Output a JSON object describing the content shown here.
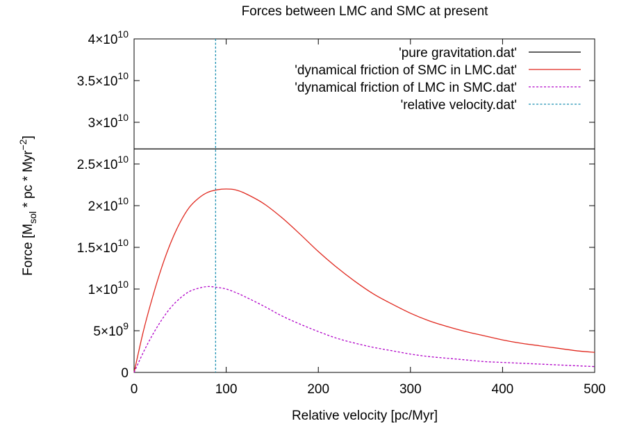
{
  "chart_data": {
    "type": "line",
    "title": "Forces between LMC and SMC at present",
    "xlabel": "Relative velocity [pc/Myr]",
    "ylabel": {
      "force": "Force [M",
      "sub_sol": "sol",
      "units": " * pc * Myr",
      "sup_exp": "−2",
      "close": "]"
    },
    "xlim": [
      0,
      500
    ],
    "ylim": [
      0,
      40000000000
    ],
    "x_ticks": [
      {
        "value": 0,
        "label": "0"
      },
      {
        "value": 100,
        "label": "100"
      },
      {
        "value": 200,
        "label": "200"
      },
      {
        "value": 300,
        "label": "300"
      },
      {
        "value": 400,
        "label": "400"
      },
      {
        "value": 500,
        "label": "500"
      }
    ],
    "y_ticks": [
      {
        "value": 0,
        "mant": "0",
        "exp": ""
      },
      {
        "value": 5000000000,
        "mant": "5×10",
        "exp": "9"
      },
      {
        "value": 10000000000,
        "mant": "1×10",
        "exp": "10"
      },
      {
        "value": 15000000000,
        "mant": "1.5×10",
        "exp": "10"
      },
      {
        "value": 20000000000,
        "mant": "2×10",
        "exp": "10"
      },
      {
        "value": 25000000000,
        "mant": "2.5×10",
        "exp": "10"
      },
      {
        "value": 30000000000,
        "mant": "3×10",
        "exp": "10"
      },
      {
        "value": 35000000000,
        "mant": "3.5×10",
        "exp": "10"
      },
      {
        "value": 40000000000,
        "mant": "4×10",
        "exp": "10"
      }
    ],
    "grid": false,
    "legend_position": "top-right",
    "series": [
      {
        "name": "'pure gravitation.dat'",
        "color": "#000000",
        "dash": "solid",
        "kind": "horizontal",
        "y": 26800000000
      },
      {
        "name": "'dynamical friction of SMC in LMC.dat'",
        "color": "#e0271d",
        "dash": "solid",
        "kind": "curve",
        "x": [
          0,
          10,
          20,
          30,
          40,
          50,
          60,
          70,
          80,
          90,
          100,
          110,
          120,
          140,
          160,
          180,
          200,
          220,
          240,
          260,
          280,
          300,
          320,
          340,
          360,
          380,
          400,
          420,
          440,
          460,
          480,
          500
        ],
        "y": [
          0,
          4900000000,
          9000000000,
          12600000000,
          15600000000,
          18000000000,
          19800000000,
          20900000000,
          21600000000,
          21900000000,
          22000000000,
          21900000000,
          21500000000,
          20300000000,
          18600000000,
          16600000000,
          14500000000,
          12600000000,
          10900000000,
          9400000000,
          8200000000,
          7100000000,
          6200000000,
          5500000000,
          4900000000,
          4400000000,
          3900000000,
          3500000000,
          3200000000,
          2900000000,
          2600000000,
          2400000000
        ]
      },
      {
        "name": "'dynamical friction of LMC in SMC.dat'",
        "color": "#b000c8",
        "dash": "dotted",
        "kind": "curve",
        "x": [
          0,
          10,
          20,
          30,
          40,
          50,
          60,
          70,
          80,
          90,
          100,
          110,
          120,
          140,
          160,
          180,
          200,
          220,
          240,
          260,
          280,
          300,
          320,
          340,
          360,
          380,
          400,
          420,
          440,
          460,
          480,
          500
        ],
        "y": [
          0,
          2400000000,
          4500000000,
          6300000000,
          7800000000,
          8900000000,
          9700000000,
          10100000000,
          10300000000,
          10200000000,
          10000000000,
          9600000000,
          9100000000,
          8000000000,
          6800000000,
          5800000000,
          4900000000,
          4100000000,
          3500000000,
          3000000000,
          2600000000,
          2200000000,
          1900000000,
          1700000000,
          1500000000,
          1300000000,
          1200000000,
          1100000000,
          1000000000,
          900000000,
          800000000,
          700000000
        ]
      },
      {
        "name": "'relative velocity.dat'",
        "color": "#1a8fb0",
        "dash": "dotted",
        "kind": "vertical",
        "x": 88.5
      }
    ]
  }
}
